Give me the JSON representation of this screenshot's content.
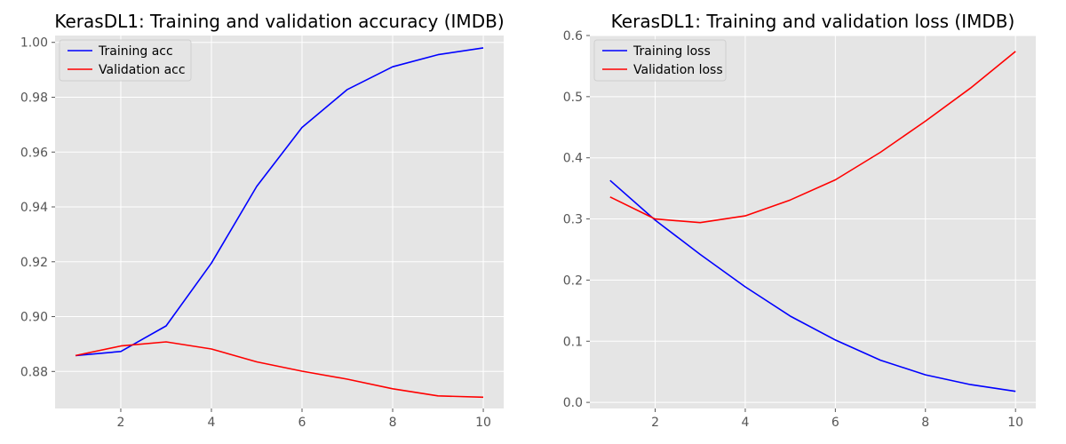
{
  "chart_data": [
    {
      "type": "line",
      "title": "KerasDL1: Training and validation accuracy (IMDB)",
      "xlabel": "",
      "ylabel": "",
      "xlim": [
        0.55,
        10.45
      ],
      "ylim": [
        0.8665,
        1.0025
      ],
      "xticks": [
        2,
        4,
        6,
        8,
        10
      ],
      "yticks": [
        0.88,
        0.9,
        0.92,
        0.94,
        0.96,
        0.98,
        1.0
      ],
      "ytick_labels": [
        "0.88",
        "0.90",
        "0.92",
        "0.94",
        "0.96",
        "0.98",
        "1.00"
      ],
      "grid": true,
      "legend_placement": "upper-left",
      "x": [
        1,
        2,
        3,
        4,
        5,
        6,
        7,
        8,
        9,
        10
      ],
      "series": [
        {
          "name": "Training acc",
          "color": "#0000ff",
          "values": [
            0.8858,
            0.8873,
            0.8966,
            0.9195,
            0.9475,
            0.969,
            0.9828,
            0.9911,
            0.9955,
            0.998
          ]
        },
        {
          "name": "Validation acc",
          "color": "#ff0000",
          "values": [
            0.8858,
            0.8893,
            0.8908,
            0.8882,
            0.8835,
            0.8801,
            0.8772,
            0.8737,
            0.8711,
            0.8706
          ]
        }
      ]
    },
    {
      "type": "line",
      "title": "KerasDL1: Training and validation loss (IMDB)",
      "xlabel": "",
      "ylabel": "",
      "xlim": [
        0.55,
        10.45
      ],
      "ylim": [
        -0.01,
        0.6
      ],
      "xticks": [
        2,
        4,
        6,
        8,
        10
      ],
      "yticks": [
        0.0,
        0.1,
        0.2,
        0.3,
        0.4,
        0.5,
        0.6
      ],
      "ytick_labels": [
        "0.0",
        "0.1",
        "0.2",
        "0.3",
        "0.4",
        "0.5",
        "0.6"
      ],
      "grid": true,
      "legend_placement": "upper-left",
      "x": [
        1,
        2,
        3,
        4,
        5,
        6,
        7,
        8,
        9,
        10
      ],
      "series": [
        {
          "name": "Training loss",
          "color": "#0000ff",
          "values": [
            0.363,
            0.298,
            0.242,
            0.189,
            0.141,
            0.102,
            0.069,
            0.045,
            0.029,
            0.018
          ]
        },
        {
          "name": "Validation loss",
          "color": "#ff0000",
          "values": [
            0.336,
            0.3,
            0.294,
            0.305,
            0.331,
            0.364,
            0.409,
            0.46,
            0.514,
            0.574
          ]
        }
      ]
    }
  ],
  "style": {
    "axes_background": "#e5e5e5",
    "grid_color": "#ffffff",
    "tick_label_color": "#555555"
  }
}
